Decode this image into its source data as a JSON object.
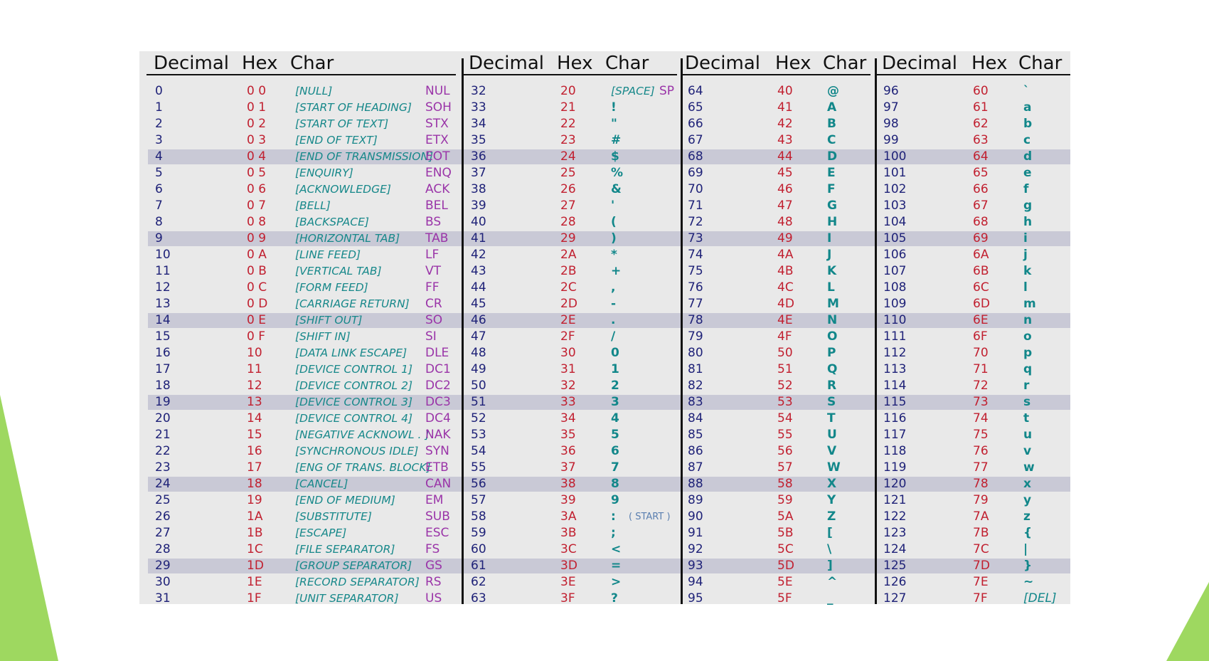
{
  "headers": {
    "decimal": "Decimal",
    "hex": "Hex",
    "char": "Char"
  },
  "annotations": {
    "start": "( START )"
  },
  "highlighted_rows": [
    4,
    9,
    14,
    19,
    24,
    29
  ],
  "colors": {
    "decimal": "#1f2278",
    "hex": "#c12030",
    "description": "#17888a",
    "abbreviation": "#9a34a8",
    "char": "#12878a",
    "band": "#c9c9d6",
    "background": "#e9e9e9",
    "accent_green": "#9ed860"
  },
  "col1": [
    {
      "dec": "0",
      "hex": "0 0",
      "desc": "[NULL]",
      "abbr": "NUL"
    },
    {
      "dec": "1",
      "hex": "0 1",
      "desc": "[START OF HEADING]",
      "abbr": "SOH"
    },
    {
      "dec": "2",
      "hex": "0 2",
      "desc": "[START OF TEXT]",
      "abbr": "STX"
    },
    {
      "dec": "3",
      "hex": "0 3",
      "desc": "[END OF TEXT]",
      "abbr": "ETX"
    },
    {
      "dec": "4",
      "hex": "0 4",
      "desc": "[END OF TRANSMISSION]",
      "abbr": "EOT"
    },
    {
      "dec": "5",
      "hex": "0 5",
      "desc": "[ENQUIRY]",
      "abbr": "ENQ"
    },
    {
      "dec": "6",
      "hex": "0 6",
      "desc": "[ACKNOWLEDGE]",
      "abbr": "ACK"
    },
    {
      "dec": "7",
      "hex": "0 7",
      "desc": "[BELL]",
      "abbr": "BEL"
    },
    {
      "dec": "8",
      "hex": "0 8",
      "desc": "[BACKSPACE]",
      "abbr": "BS"
    },
    {
      "dec": "9",
      "hex": "0 9",
      "desc": "[HORIZONTAL TAB]",
      "abbr": "TAB"
    },
    {
      "dec": "10",
      "hex": "0 A",
      "desc": "[LINE FEED]",
      "abbr": "LF"
    },
    {
      "dec": "11",
      "hex": "0 B",
      "desc": "[VERTICAL TAB]",
      "abbr": "VT"
    },
    {
      "dec": "12",
      "hex": "0 C",
      "desc": "[FORM FEED]",
      "abbr": "FF"
    },
    {
      "dec": "13",
      "hex": "0 D",
      "desc": "[CARRIAGE RETURN]",
      "abbr": "CR"
    },
    {
      "dec": "14",
      "hex": "0 E",
      "desc": "[SHIFT OUT]",
      "abbr": "SO"
    },
    {
      "dec": "15",
      "hex": "0 F",
      "desc": "[SHIFT IN]",
      "abbr": "SI"
    },
    {
      "dec": "16",
      "hex": "10",
      "desc": "[DATA LINK ESCAPE]",
      "abbr": "DLE"
    },
    {
      "dec": "17",
      "hex": "11",
      "desc": "[DEVICE CONTROL 1]",
      "abbr": "DC1"
    },
    {
      "dec": "18",
      "hex": "12",
      "desc": "[DEVICE CONTROL 2]",
      "abbr": "DC2"
    },
    {
      "dec": "19",
      "hex": "13",
      "desc": "[DEVICE CONTROL 3]",
      "abbr": "DC3"
    },
    {
      "dec": "20",
      "hex": "14",
      "desc": "[DEVICE CONTROL 4]",
      "abbr": "DC4"
    },
    {
      "dec": "21",
      "hex": "15",
      "desc": "[NEGATIVE ACKNOWL . ]",
      "abbr": "NAK"
    },
    {
      "dec": "22",
      "hex": "16",
      "desc": "[SYNCHRONOUS IDLE]",
      "abbr": "SYN"
    },
    {
      "dec": "23",
      "hex": "17",
      "desc": "[ENG OF TRANS. BLOCK]",
      "abbr": "ETB"
    },
    {
      "dec": "24",
      "hex": "18",
      "desc": "[CANCEL]",
      "abbr": "CAN"
    },
    {
      "dec": "25",
      "hex": "19",
      "desc": "[END OF MEDIUM]",
      "abbr": "EM"
    },
    {
      "dec": "26",
      "hex": "1A",
      "desc": "[SUBSTITUTE]",
      "abbr": "SUB"
    },
    {
      "dec": "27",
      "hex": "1B",
      "desc": "[ESCAPE]",
      "abbr": "ESC"
    },
    {
      "dec": "28",
      "hex": "1C",
      "desc": "[FILE SEPARATOR]",
      "abbr": "FS"
    },
    {
      "dec": "29",
      "hex": "1D",
      "desc": "[GROUP SEPARATOR]",
      "abbr": "GS"
    },
    {
      "dec": "30",
      "hex": "1E",
      "desc": "[RECORD SEPARATOR]",
      "abbr": "RS"
    },
    {
      "dec": "31",
      "hex": "1F",
      "desc": "[UNIT SEPARATOR]",
      "abbr": "US"
    }
  ],
  "col2": [
    {
      "dec": "32",
      "hex": "20",
      "char": "[SPACE]",
      "abbr": "SP"
    },
    {
      "dec": "33",
      "hex": "21",
      "char": "!"
    },
    {
      "dec": "34",
      "hex": "22",
      "char": "\""
    },
    {
      "dec": "35",
      "hex": "23",
      "char": "#"
    },
    {
      "dec": "36",
      "hex": "24",
      "char": "$"
    },
    {
      "dec": "37",
      "hex": "25",
      "char": "%"
    },
    {
      "dec": "38",
      "hex": "26",
      "char": "&"
    },
    {
      "dec": "39",
      "hex": "27",
      "char": "'"
    },
    {
      "dec": "40",
      "hex": "28",
      "char": "("
    },
    {
      "dec": "41",
      "hex": "29",
      "char": ")"
    },
    {
      "dec": "42",
      "hex": "2A",
      "char": "*"
    },
    {
      "dec": "43",
      "hex": "2B",
      "char": "+"
    },
    {
      "dec": "44",
      "hex": "2C",
      "char": ","
    },
    {
      "dec": "45",
      "hex": "2D",
      "char": "-"
    },
    {
      "dec": "46",
      "hex": "2E",
      "char": "."
    },
    {
      "dec": "47",
      "hex": "2F",
      "char": "/"
    },
    {
      "dec": "48",
      "hex": "30",
      "char": "0"
    },
    {
      "dec": "49",
      "hex": "31",
      "char": "1"
    },
    {
      "dec": "50",
      "hex": "32",
      "char": "2"
    },
    {
      "dec": "51",
      "hex": "33",
      "char": "3"
    },
    {
      "dec": "52",
      "hex": "34",
      "char": "4"
    },
    {
      "dec": "53",
      "hex": "35",
      "char": "5"
    },
    {
      "dec": "54",
      "hex": "36",
      "char": "6"
    },
    {
      "dec": "55",
      "hex": "37",
      "char": "7"
    },
    {
      "dec": "56",
      "hex": "38",
      "char": "8"
    },
    {
      "dec": "57",
      "hex": "39",
      "char": "9"
    },
    {
      "dec": "58",
      "hex": "3A",
      "char": ":"
    },
    {
      "dec": "59",
      "hex": "3B",
      "char": ";"
    },
    {
      "dec": "60",
      "hex": "3C",
      "char": "<"
    },
    {
      "dec": "61",
      "hex": "3D",
      "char": "="
    },
    {
      "dec": "62",
      "hex": "3E",
      "char": ">"
    },
    {
      "dec": "63",
      "hex": "3F",
      "char": "?"
    }
  ],
  "col3": [
    {
      "dec": "64",
      "hex": "40",
      "char": "@"
    },
    {
      "dec": "65",
      "hex": "41",
      "char": "A"
    },
    {
      "dec": "66",
      "hex": "42",
      "char": "B"
    },
    {
      "dec": "67",
      "hex": "43",
      "char": "C"
    },
    {
      "dec": "68",
      "hex": "44",
      "char": "D"
    },
    {
      "dec": "69",
      "hex": "45",
      "char": "E"
    },
    {
      "dec": "70",
      "hex": "46",
      "char": "F"
    },
    {
      "dec": "71",
      "hex": "47",
      "char": "G"
    },
    {
      "dec": "72",
      "hex": "48",
      "char": "H"
    },
    {
      "dec": "73",
      "hex": "49",
      "char": "I"
    },
    {
      "dec": "74",
      "hex": "4A",
      "char": "J"
    },
    {
      "dec": "75",
      "hex": "4B",
      "char": "K"
    },
    {
      "dec": "76",
      "hex": "4C",
      "char": "L"
    },
    {
      "dec": "77",
      "hex": "4D",
      "char": "M"
    },
    {
      "dec": "78",
      "hex": "4E",
      "char": "N"
    },
    {
      "dec": "79",
      "hex": "4F",
      "char": "O"
    },
    {
      "dec": "80",
      "hex": "50",
      "char": "P"
    },
    {
      "dec": "81",
      "hex": "51",
      "char": "Q"
    },
    {
      "dec": "82",
      "hex": "52",
      "char": "R"
    },
    {
      "dec": "83",
      "hex": "53",
      "char": "S"
    },
    {
      "dec": "84",
      "hex": "54",
      "char": "T"
    },
    {
      "dec": "85",
      "hex": "55",
      "char": "U"
    },
    {
      "dec": "86",
      "hex": "56",
      "char": "V"
    },
    {
      "dec": "87",
      "hex": "57",
      "char": "W"
    },
    {
      "dec": "88",
      "hex": "58",
      "char": "X"
    },
    {
      "dec": "89",
      "hex": "59",
      "char": "Y"
    },
    {
      "dec": "90",
      "hex": "5A",
      "char": "Z"
    },
    {
      "dec": "91",
      "hex": "5B",
      "char": "["
    },
    {
      "dec": "92",
      "hex": "5C",
      "char": "\\"
    },
    {
      "dec": "93",
      "hex": "5D",
      "char": "]"
    },
    {
      "dec": "94",
      "hex": "5E",
      "char": "^"
    },
    {
      "dec": "95",
      "hex": "5F",
      "char": "_"
    }
  ],
  "col4": [
    {
      "dec": "96",
      "hex": "60",
      "char": "`"
    },
    {
      "dec": "97",
      "hex": "61",
      "char": "a"
    },
    {
      "dec": "98",
      "hex": "62",
      "char": "b"
    },
    {
      "dec": "99",
      "hex": "63",
      "char": "c"
    },
    {
      "dec": "100",
      "hex": "64",
      "char": "d"
    },
    {
      "dec": "101",
      "hex": "65",
      "char": "e"
    },
    {
      "dec": "102",
      "hex": "66",
      "char": "f"
    },
    {
      "dec": "103",
      "hex": "67",
      "char": "g"
    },
    {
      "dec": "104",
      "hex": "68",
      "char": "h"
    },
    {
      "dec": "105",
      "hex": "69",
      "char": "i"
    },
    {
      "dec": "106",
      "hex": "6A",
      "char": "j"
    },
    {
      "dec": "107",
      "hex": "6B",
      "char": "k"
    },
    {
      "dec": "108",
      "hex": "6C",
      "char": "l"
    },
    {
      "dec": "109",
      "hex": "6D",
      "char": "m"
    },
    {
      "dec": "110",
      "hex": "6E",
      "char": "n"
    },
    {
      "dec": "111",
      "hex": "6F",
      "char": "o"
    },
    {
      "dec": "112",
      "hex": "70",
      "char": "p"
    },
    {
      "dec": "113",
      "hex": "71",
      "char": "q"
    },
    {
      "dec": "114",
      "hex": "72",
      "char": "r"
    },
    {
      "dec": "115",
      "hex": "73",
      "char": "s"
    },
    {
      "dec": "116",
      "hex": "74",
      "char": "t"
    },
    {
      "dec": "117",
      "hex": "75",
      "char": "u"
    },
    {
      "dec": "118",
      "hex": "76",
      "char": "v"
    },
    {
      "dec": "119",
      "hex": "77",
      "char": "w"
    },
    {
      "dec": "120",
      "hex": "78",
      "char": "x"
    },
    {
      "dec": "121",
      "hex": "79",
      "char": "y"
    },
    {
      "dec": "122",
      "hex": "7A",
      "char": "z"
    },
    {
      "dec": "123",
      "hex": "7B",
      "char": "{"
    },
    {
      "dec": "124",
      "hex": "7C",
      "char": "|"
    },
    {
      "dec": "125",
      "hex": "7D",
      "char": "}"
    },
    {
      "dec": "126",
      "hex": "7E",
      "char": "~"
    },
    {
      "dec": "127",
      "hex": "7F",
      "char": "[DEL]"
    }
  ]
}
